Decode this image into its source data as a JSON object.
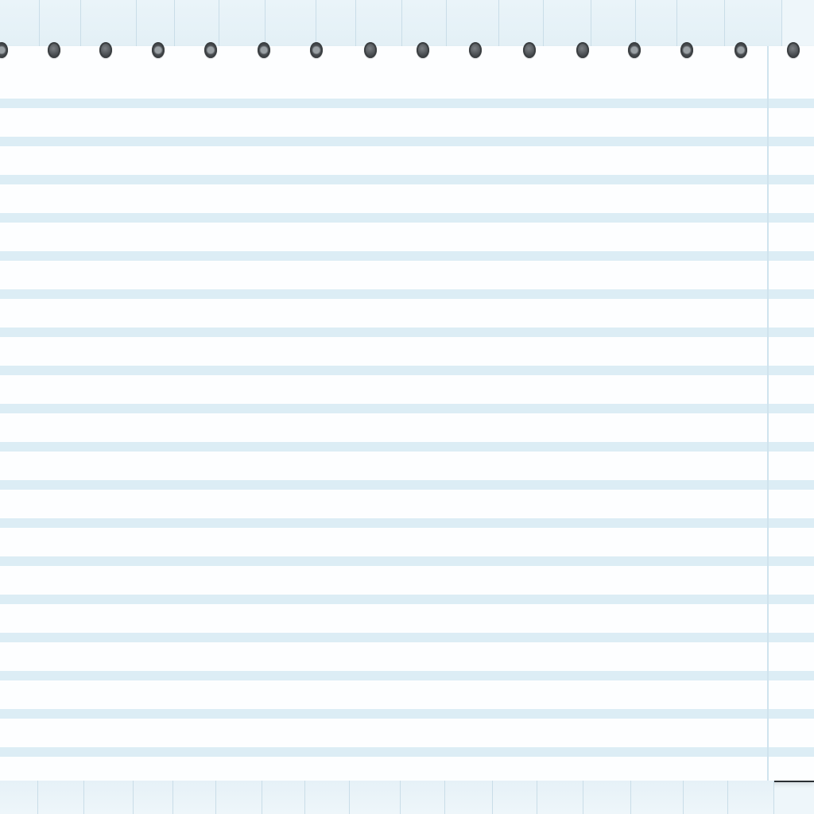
{
  "palette": {
    "paper": "#fdfeff",
    "rule_line": "#dcedf5",
    "margin_line": "#cfe3ee",
    "tile": "#eaf4f9",
    "tile_border": "#c9dde8",
    "hole": "#3b3f42"
  },
  "sheet": {
    "holes": [
      {
        "name": "binder-hole",
        "style": "ring"
      },
      {
        "name": "binder-hole",
        "style": "solid"
      },
      {
        "name": "binder-hole",
        "style": "solid"
      },
      {
        "name": "binder-hole",
        "style": "ring"
      },
      {
        "name": "binder-hole",
        "style": "ring"
      },
      {
        "name": "binder-hole",
        "style": "ring"
      },
      {
        "name": "binder-hole",
        "style": "ring"
      },
      {
        "name": "binder-hole",
        "style": "solid"
      },
      {
        "name": "binder-hole",
        "style": "solid"
      },
      {
        "name": "binder-hole",
        "style": "solid"
      },
      {
        "name": "binder-hole",
        "style": "solid"
      },
      {
        "name": "binder-hole",
        "style": "solid"
      },
      {
        "name": "binder-hole",
        "style": "ring"
      },
      {
        "name": "binder-hole",
        "style": "ring"
      },
      {
        "name": "binder-hole",
        "style": "ring"
      },
      {
        "name": "binder-hole",
        "style": "solid"
      }
    ]
  }
}
